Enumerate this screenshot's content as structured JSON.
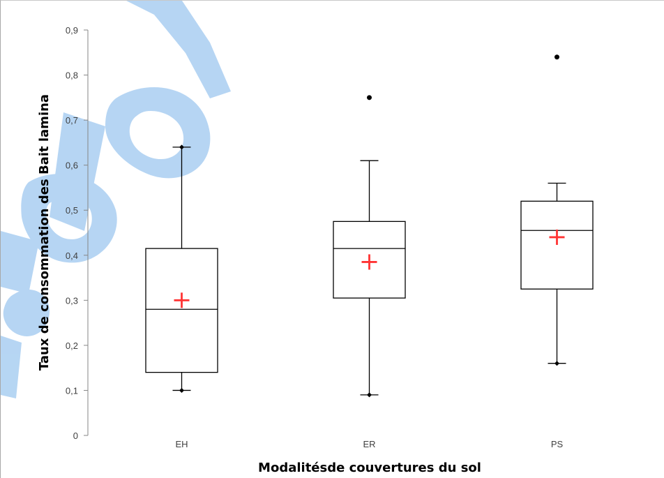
{
  "chart_data": {
    "type": "box",
    "title": "",
    "xlabel": "Modalitésde couvertures du sol",
    "ylabel": "Taux de consommation  des Bait lamina",
    "ylim": [
      0,
      0.9
    ],
    "y_ticks": [
      "0",
      "0,1",
      "0,2",
      "0,3",
      "0,4",
      "0,5",
      "0,6",
      "0,7",
      "0,8",
      "0,9"
    ],
    "categories": [
      "EH",
      "ER",
      "PS"
    ],
    "boxes": [
      {
        "category": "EH",
        "whisker_low": 0.1,
        "q1": 0.14,
        "median": 0.28,
        "q3": 0.415,
        "whisker_high": 0.64,
        "mean": 0.3,
        "outliers": []
      },
      {
        "category": "ER",
        "whisker_low": 0.09,
        "q1": 0.305,
        "median": 0.415,
        "q3": 0.475,
        "whisker_high": 0.61,
        "mean": 0.385,
        "outliers": [
          0.75
        ]
      },
      {
        "category": "PS",
        "whisker_low": 0.16,
        "q1": 0.325,
        "median": 0.455,
        "q3": 0.52,
        "whisker_high": 0.56,
        "mean": 0.44,
        "outliers": [
          0.84
        ]
      }
    ],
    "grid": false,
    "legend": "none",
    "colors": {
      "box_line": "#000000",
      "mean_marker": "#ff3333",
      "axis": "#868686",
      "watermark": "#9ec8ef"
    }
  }
}
